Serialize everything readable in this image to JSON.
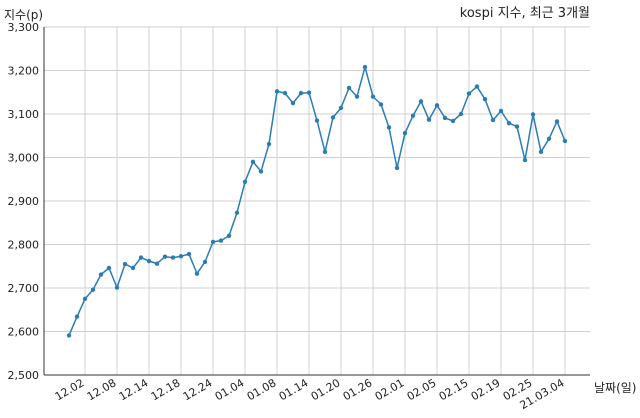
{
  "chart_data": {
    "type": "line",
    "title": "kospi 지수, 최근 3개월",
    "ylabel": "지수(p)",
    "xlabel": "날짜(일)",
    "ylim": [
      2500,
      3300
    ],
    "yticks": [
      2500,
      2600,
      2700,
      2800,
      2900,
      3000,
      3100,
      3200,
      3300
    ],
    "ytick_labels": [
      "2,500",
      "2,600",
      "2,700",
      "2,800",
      "2,900",
      "3,000",
      "3,100",
      "3,200",
      "3,300"
    ],
    "xtick_labels": [
      "12.02",
      "12.08",
      "12.14",
      "12.18",
      "12.24",
      "01.04",
      "01.08",
      "01.14",
      "01.20",
      "01.26",
      "02.01",
      "02.05",
      "02.15",
      "02.19",
      "02.25",
      "21.03.04"
    ],
    "xtick_positions": [
      2,
      6,
      10,
      14,
      18,
      22,
      26,
      30,
      34,
      38,
      42,
      46,
      50,
      54,
      58,
      62
    ],
    "grid": true,
    "line_color": "#2a7db3",
    "series": [
      {
        "values": [
          2591,
          2634,
          2675,
          2696,
          2731,
          2746,
          2701,
          2755,
          2746,
          2770,
          2762,
          2756,
          2772,
          2770,
          2773,
          2778,
          2733,
          2760,
          2806,
          2809,
          2820,
          2873,
          2944,
          2990,
          2968,
          3031,
          3152,
          3148,
          3125,
          3148,
          3149,
          3085,
          3013,
          3092,
          3114,
          3160,
          3140,
          3208,
          3140,
          3122,
          3069,
          2976,
          3056,
          3096,
          3129,
          3087,
          3120,
          3091,
          3084,
          3100,
          3147,
          3163,
          3134,
          3086,
          3107,
          3079,
          3071,
          2994,
          3099,
          3013,
          3043,
          3083,
          3038
        ]
      }
    ]
  }
}
